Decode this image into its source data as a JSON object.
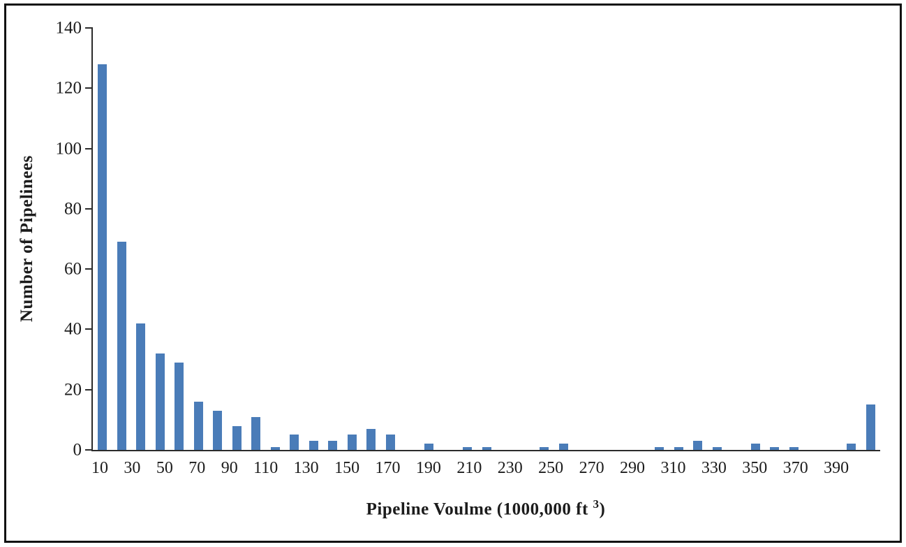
{
  "chart_data": {
    "type": "bar",
    "title": "",
    "xlabel": "Pipeline Voulme (1000,000 ft 3)",
    "xlabel_prefix": "Pipeline Voulme (1000,000 ft",
    "xlabel_sup": "3",
    "xlabel_suffix": ")",
    "ylabel": "Number of Pipelinees",
    "categories": [
      10,
      20,
      30,
      40,
      50,
      60,
      70,
      80,
      90,
      100,
      110,
      120,
      130,
      140,
      150,
      160,
      170,
      180,
      190,
      200,
      210,
      220,
      230,
      240,
      250,
      260,
      270,
      280,
      290,
      300,
      310,
      320,
      330,
      340,
      350,
      360,
      370,
      380,
      390,
      400,
      410
    ],
    "values": [
      128,
      69,
      42,
      32,
      29,
      16,
      13,
      8,
      11,
      1,
      5,
      3,
      3,
      5,
      7,
      5,
      0,
      2,
      0,
      1,
      1,
      0,
      0,
      1,
      2,
      0,
      0,
      0,
      0,
      1,
      1,
      3,
      1,
      0,
      2,
      1,
      1,
      0,
      0,
      2,
      15
    ],
    "x_tick_labels": [
      "10",
      "30",
      "50",
      "70",
      "90",
      "110",
      "130",
      "150",
      "170",
      "190",
      "210",
      "230",
      "250",
      "270",
      "290",
      "310",
      "330",
      "350",
      "370",
      "390"
    ],
    "y_ticks": [
      0,
      20,
      40,
      60,
      80,
      100,
      120,
      140
    ],
    "ylim": [
      0,
      140
    ],
    "bar_color": "#4a7cb8",
    "axis_color": "#2b2b2b",
    "grid": false,
    "legend_position": "none"
  }
}
